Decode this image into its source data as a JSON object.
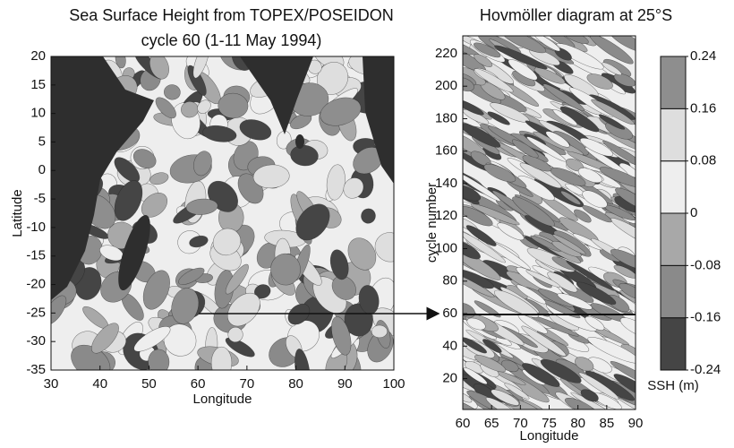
{
  "chart_data": [
    {
      "type": "contour",
      "title": "Sea Surface Height from TOPEX/POSEIDON",
      "subtitle": "cycle 60 (1-11 May 1994)",
      "x_label": "Longitude",
      "y_label": "Latitude",
      "xlim": [
        30,
        100
      ],
      "xticks": [
        30,
        40,
        50,
        60,
        70,
        80,
        90,
        100
      ],
      "ylim": [
        -35,
        20
      ],
      "yticks": [
        20,
        15,
        10,
        5,
        0,
        -5,
        -10,
        -15,
        -20,
        -25,
        -30,
        -35
      ]
    },
    {
      "type": "contour",
      "title": "Hovmöller diagram at 25°S",
      "x_label": "Longitude",
      "y_label": "cycle number",
      "xlim": [
        60,
        90
      ],
      "xticks": [
        60,
        65,
        70,
        75,
        80,
        85,
        90
      ],
      "ylim": [
        1,
        231
      ],
      "yticks": [
        20,
        40,
        60,
        80,
        100,
        120,
        140,
        160,
        180,
        200,
        220
      ]
    },
    {
      "type": "colorbar",
      "label": "SSH (m)",
      "ylim": [
        -0.24,
        0.24
      ],
      "yticks": [
        -0.24,
        -0.16,
        -0.08,
        0,
        0.08,
        0.16,
        0.24
      ],
      "colors": [
        "#454545",
        "#8a8a8a",
        "#a8a8a8",
        "#eeeeee",
        "#dedede",
        "#8e8e8e"
      ]
    }
  ]
}
